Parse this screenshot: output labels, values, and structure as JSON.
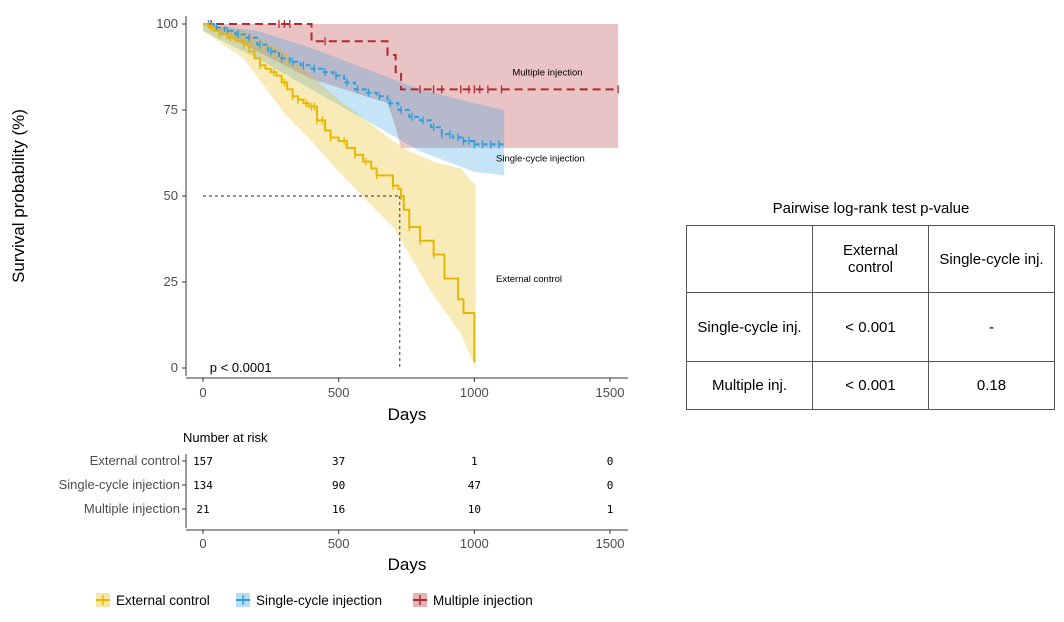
{
  "chart_data": [
    {
      "type": "line",
      "subtype": "kaplan-meier",
      "ylabel": "Survival probability (%)",
      "xlabel": "Days",
      "xlim": [
        0,
        1550
      ],
      "ylim": [
        0,
        100
      ],
      "x_ticks": [
        0,
        500,
        1000,
        1500
      ],
      "y_ticks": [
        0,
        25,
        50,
        75,
        100
      ],
      "grid": false,
      "pvalue_text": "p < 0.0001",
      "median_line": {
        "x": 725,
        "y": 50
      },
      "series": [
        {
          "name": "External control",
          "color": "#E7B800",
          "annotation": "External control",
          "annotation_pos": [
            1080,
            25
          ],
          "steps": [
            [
              0,
              100
            ],
            [
              20,
              99
            ],
            [
              40,
              98
            ],
            [
              60,
              97
            ],
            [
              90,
              96
            ],
            [
              120,
              95
            ],
            [
              150,
              94
            ],
            [
              170,
              92
            ],
            [
              190,
              90
            ],
            [
              210,
              88
            ],
            [
              230,
              87
            ],
            [
              250,
              86
            ],
            [
              270,
              85
            ],
            [
              290,
              83
            ],
            [
              310,
              81
            ],
            [
              330,
              79
            ],
            [
              350,
              78
            ],
            [
              370,
              77
            ],
            [
              390,
              76
            ],
            [
              420,
              72
            ],
            [
              450,
              69
            ],
            [
              470,
              67
            ],
            [
              500,
              66
            ],
            [
              530,
              64
            ],
            [
              560,
              62
            ],
            [
              590,
              60
            ],
            [
              620,
              58
            ],
            [
              640,
              56
            ],
            [
              700,
              53
            ],
            [
              720,
              52
            ],
            [
              730,
              50
            ],
            [
              740,
              46
            ],
            [
              760,
              41
            ],
            [
              800,
              37
            ],
            [
              850,
              33
            ],
            [
              890,
              26
            ],
            [
              940,
              20
            ],
            [
              960,
              16
            ],
            [
              1000,
              2
            ]
          ],
          "end": 1005,
          "ci_upper": [
            [
              0,
              100
            ],
            [
              150,
              98
            ],
            [
              300,
              92
            ],
            [
              400,
              85
            ],
            [
              500,
              78
            ],
            [
              600,
              72
            ],
            [
              700,
              66
            ],
            [
              760,
              63
            ],
            [
              850,
              60
            ],
            [
              950,
              58
            ],
            [
              1005,
              53
            ]
          ],
          "ci_lower": [
            [
              0,
              98
            ],
            [
              150,
              90
            ],
            [
              300,
              74
            ],
            [
              400,
              66
            ],
            [
              500,
              57
            ],
            [
              600,
              49
            ],
            [
              700,
              41
            ],
            [
              760,
              33
            ],
            [
              850,
              21
            ],
            [
              950,
              10
            ],
            [
              1005,
              0
            ]
          ],
          "censor_x": [
            30,
            60,
            100,
            150,
            210,
            260,
            300,
            330,
            350,
            380,
            400,
            410,
            420,
            440,
            470,
            520,
            560,
            600,
            640,
            700,
            730,
            760,
            800,
            850
          ]
        },
        {
          "name": "Single-cycle injection",
          "color": "#2E9FDF",
          "annotation": "Single-cycle injection",
          "annotation_pos": [
            1080,
            60
          ],
          "steps": [
            [
              0,
              100
            ],
            [
              40,
              99
            ],
            [
              80,
              98
            ],
            [
              120,
              97
            ],
            [
              160,
              96
            ],
            [
              200,
              94
            ],
            [
              240,
              92
            ],
            [
              280,
              90
            ],
            [
              320,
              89
            ],
            [
              360,
              88
            ],
            [
              400,
              87
            ],
            [
              440,
              86
            ],
            [
              480,
              85
            ],
            [
              520,
              83
            ],
            [
              560,
              81
            ],
            [
              600,
              80
            ],
            [
              640,
              79
            ],
            [
              680,
              77
            ],
            [
              720,
              75
            ],
            [
              760,
              73
            ],
            [
              800,
              72
            ],
            [
              840,
              70
            ],
            [
              880,
              68
            ],
            [
              920,
              67
            ],
            [
              960,
              66
            ],
            [
              1000,
              65
            ]
          ],
          "end": 1110,
          "ci_upper": [
            [
              0,
              100
            ],
            [
              200,
              98
            ],
            [
              400,
              93
            ],
            [
              600,
              87
            ],
            [
              800,
              81
            ],
            [
              1000,
              77
            ],
            [
              1110,
              75
            ]
          ],
          "ci_lower": [
            [
              0,
              98
            ],
            [
              200,
              90
            ],
            [
              400,
              81
            ],
            [
              600,
              72
            ],
            [
              800,
              63
            ],
            [
              1000,
              57
            ],
            [
              1110,
              56
            ]
          ],
          "censor_x": [
            20,
            50,
            90,
            130,
            170,
            210,
            250,
            290,
            330,
            370,
            410,
            450,
            490,
            530,
            570,
            610,
            650,
            690,
            730,
            770,
            810,
            850,
            880,
            910,
            940,
            960,
            980,
            1000,
            1030,
            1060,
            1090
          ]
        },
        {
          "name": "Multiple injection",
          "color": "#B2292E",
          "annotation": "Multiple injection",
          "annotation_pos": [
            1140,
            85
          ],
          "steps": [
            [
              0,
              100
            ],
            [
              400,
              95
            ],
            [
              680,
              91
            ],
            [
              710,
              86
            ],
            [
              730,
              81
            ]
          ],
          "end": 1530,
          "ci_upper": [
            [
              0,
              100
            ],
            [
              1530,
              100
            ]
          ],
          "ci_lower": [
            [
              0,
              100
            ],
            [
              400,
              84
            ],
            [
              680,
              77
            ],
            [
              710,
              70
            ],
            [
              730,
              64
            ],
            [
              1530,
              64
            ]
          ],
          "censor_x": [
            30,
            280,
            300,
            320,
            450,
            800,
            850,
            880,
            950,
            980,
            1000,
            1020,
            1050,
            1100,
            1530
          ]
        }
      ]
    },
    {
      "type": "table",
      "title": "Number at risk",
      "xlabel": "Days",
      "times": [
        0,
        500,
        1000,
        1500
      ],
      "x_ticks": [
        0,
        500,
        1000,
        1500
      ],
      "rows": [
        {
          "label": "External control",
          "values": [
            "157",
            "37",
            "1",
            "0"
          ]
        },
        {
          "label": "Single-cycle injection",
          "values": [
            "134",
            "90",
            "47",
            "0"
          ]
        },
        {
          "label": "Multiple injection",
          "values": [
            "21",
            "16",
            "10",
            "1"
          ]
        }
      ]
    },
    {
      "type": "table",
      "title": "Pairwise log-rank test p-value",
      "header": [
        "",
        "External control",
        "Single-cycle inj."
      ],
      "rows": [
        [
          "Single-cycle inj.",
          "< 0.001",
          "-"
        ],
        [
          "Multiple inj.",
          "< 0.001",
          "0.18"
        ]
      ]
    }
  ],
  "legend": {
    "items": [
      {
        "label": "External control",
        "color": "#E7B800"
      },
      {
        "label": "Single-cycle injection",
        "color": "#2E9FDF"
      },
      {
        "label": "Multiple injection",
        "color": "#B2292E"
      }
    ]
  }
}
